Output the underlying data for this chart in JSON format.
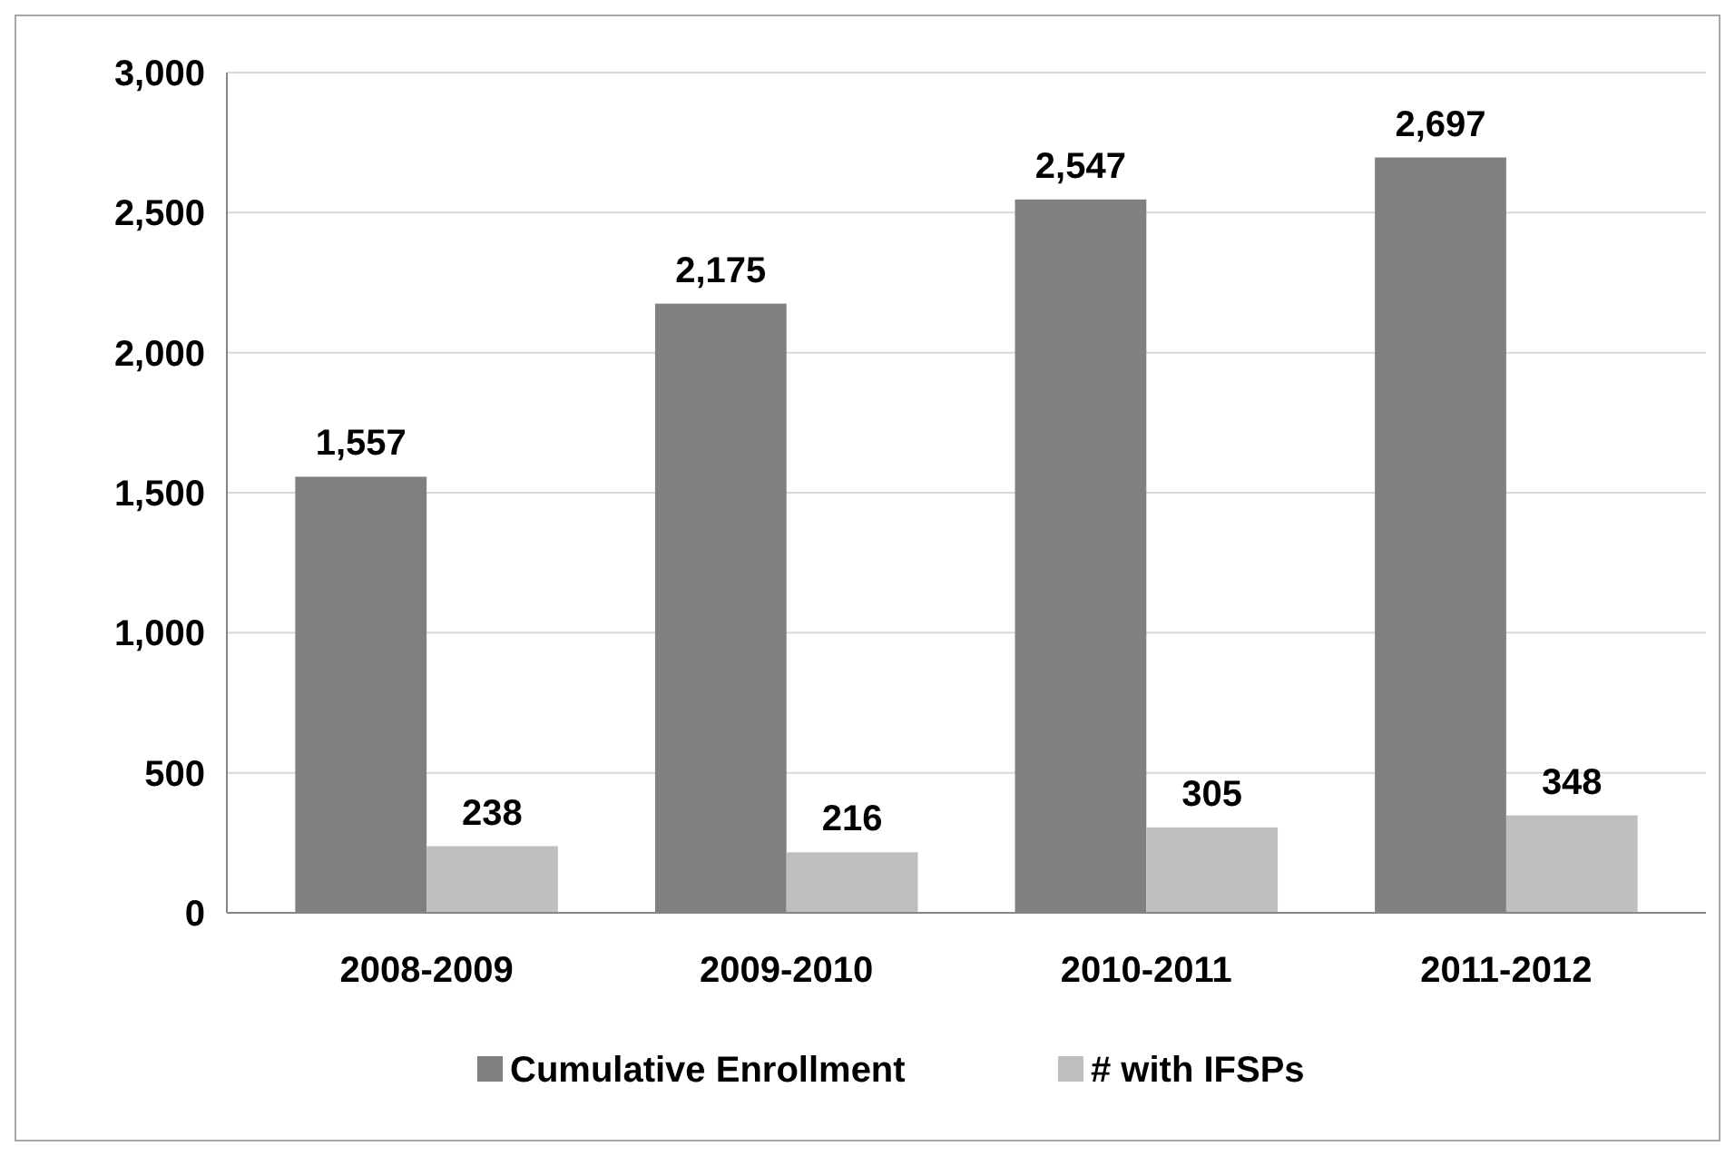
{
  "chart_data": {
    "type": "bar",
    "categories": [
      "2008-2009",
      "2009-2010",
      "2010-2011",
      "2011-2012"
    ],
    "series": [
      {
        "name": "Cumulative Enrollment",
        "color": "#808080",
        "values": [
          1557,
          2175,
          2547,
          2697
        ],
        "value_labels": [
          "1,557",
          "2,175",
          "2,547",
          "2,697"
        ]
      },
      {
        "name": "# with IFSPs",
        "color": "#bfbfbf",
        "values": [
          238,
          216,
          305,
          348
        ],
        "value_labels": [
          "238",
          "216",
          "305",
          "348"
        ]
      }
    ],
    "ylim": [
      0,
      3000
    ],
    "yticks": [
      0,
      500,
      {
        "value": 1000,
        "label": "1,000"
      },
      {
        "value": 1500,
        "label": "1,500"
      },
      {
        "value": 2000,
        "label": "2,000"
      },
      {
        "value": 2500,
        "label": "2,500"
      },
      {
        "value": 3000,
        "label": "3,000"
      }
    ],
    "grid": "y",
    "legend": "bottom"
  }
}
